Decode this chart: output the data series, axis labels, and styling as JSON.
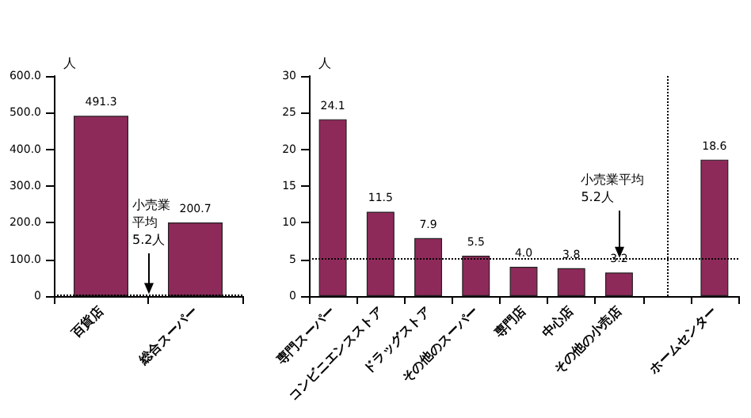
{
  "chart_data": [
    {
      "type": "bar",
      "ylabel": "人",
      "categories": [
        "百貨店",
        "総合スーパー"
      ],
      "values": [
        491.3,
        200.7
      ],
      "color": "#8e2a5a",
      "value_labels": [
        "491.3",
        "200.7"
      ],
      "ylim": [
        0,
        600
      ],
      "yticks": [
        0,
        {
          "value": 100,
          "label": "100.0"
        },
        {
          "value": 200,
          "label": "200.0"
        },
        {
          "value": 300,
          "label": "300.0"
        },
        {
          "value": 400,
          "label": "400.0"
        },
        {
          "value": 500,
          "label": "500.0"
        },
        {
          "value": 600,
          "label": "600.0"
        }
      ],
      "grid": false,
      "ref_lines": [
        {
          "axis": "y",
          "value": 5.2,
          "label": "小売業平均5.2人",
          "line_style": "dotted"
        }
      ]
    },
    {
      "type": "bar",
      "ylabel": "人",
      "categories": [
        "専門スーパー",
        "コンビニエンスストア",
        "ドラッグストア",
        "その他のスーパー",
        "専門店",
        "中心店",
        "その他の小売店",
        null,
        "ホームセンター"
      ],
      "values": [
        24.1,
        11.5,
        7.9,
        5.5,
        4.0,
        3.8,
        3.2,
        null,
        18.6
      ],
      "color": "#8e2a5a",
      "value_labels": [
        "24.1",
        "11.5",
        "7.9",
        "5.5",
        "4.0",
        "3.8",
        "3.2",
        null,
        "18.6"
      ],
      "ylim": [
        0,
        30
      ],
      "yticks": [
        0,
        5,
        10,
        15,
        20,
        25,
        30
      ],
      "ref_lines": [
        {
          "axis": "y",
          "value": 5.2,
          "label": "小売業平均5.2人",
          "line_style": "dotted"
        }
      ]
    }
  ]
}
